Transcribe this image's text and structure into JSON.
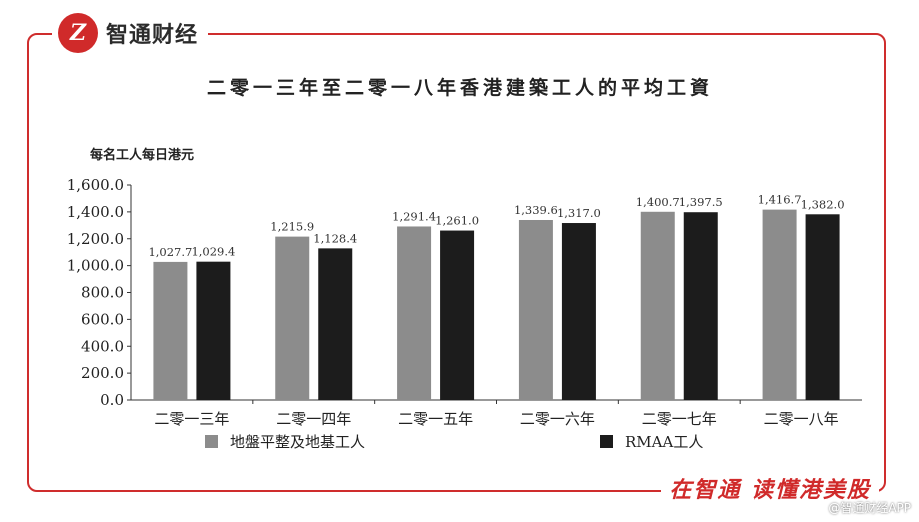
{
  "brand": {
    "logo_text": "Z",
    "name": "智通财经"
  },
  "slogan": "在智通 读懂港美股",
  "corner_watermark": "@智通财经APP",
  "colors": {
    "frame": "#cf2d2d",
    "series_a": "#8c8c8c",
    "series_b": "#1c1c1c"
  },
  "chart_data": {
    "type": "bar",
    "title": "二零一三年至二零一八年香港建築工人的平均工資",
    "ylabel": "每名工人每日港元",
    "xlabel": "",
    "ylim": [
      0,
      1600
    ],
    "yticks": [
      "1,600.0",
      "1,400.0",
      "1,200.0",
      "1,000.0",
      "800.0",
      "600.0",
      "400.0",
      "200.0",
      "0.0"
    ],
    "categories": [
      "二零一三年",
      "二零一四年",
      "二零一五年",
      "二零一六年",
      "二零一七年",
      "二零一八年"
    ],
    "series": [
      {
        "name": "地盤平整及地基工人",
        "values": [
          1027.7,
          1215.9,
          1291.4,
          1339.6,
          1400.7,
          1416.7
        ],
        "labels": [
          "1,027.7",
          "1,215.9",
          "1,291.4",
          "1,339.6",
          "1,400.7",
          "1,416.7"
        ]
      },
      {
        "name": "RMAA工人",
        "values": [
          1029.4,
          1128.4,
          1261.0,
          1317.0,
          1397.5,
          1382.0
        ],
        "labels": [
          "1,029.4",
          "1,128.4",
          "1,261.0",
          "1,317.0",
          "1,397.5",
          "1,382.0"
        ]
      }
    ],
    "legend_position": "bottom",
    "grid": false
  }
}
